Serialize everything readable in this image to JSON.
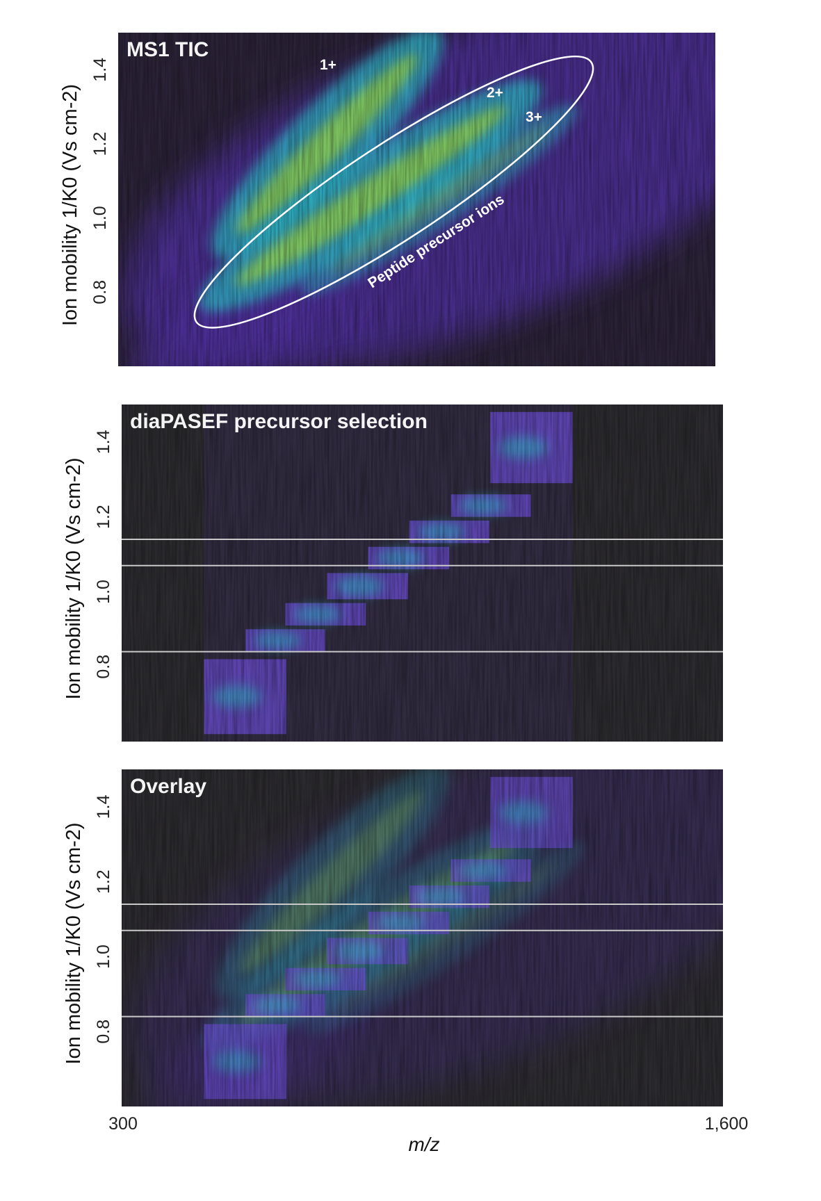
{
  "chart_data": [
    {
      "type": "heatmap",
      "title": "MS1 TIC",
      "ylabel": "Ion mobility 1/K0 (Vs cm-2)",
      "ylabel_parts": {
        "main": "Ion mobility 1/K",
        "sub": "0",
        "unit": "(Vs cm",
        "sup": "-2",
        "close": ")"
      },
      "yticks": [
        "0.8",
        "1.0",
        "1.2",
        "1.4"
      ],
      "ylim": [
        0.6,
        1.5
      ],
      "xlim": [
        300,
        1600
      ],
      "colormap": "viridis",
      "charge_bands": [
        {
          "label": "1+",
          "mz": [
            510,
            1000
          ],
          "im": [
            0.9,
            1.5
          ]
        },
        {
          "label": "2+",
          "mz": [
            480,
            1220
          ],
          "im": [
            0.76,
            1.36
          ]
        },
        {
          "label": "3+",
          "mz": [
            700,
            1300
          ],
          "im": [
            0.8,
            1.3
          ]
        }
      ],
      "annotations": [
        "1+",
        "2+",
        "3+",
        "Peptide precursor ions"
      ]
    },
    {
      "type": "heatmap",
      "title": "diaPASEF precursor selection",
      "ylabel": "Ion mobility 1/K0 (Vs cm-2)",
      "yticks": [
        "0.8",
        "1.0",
        "1.2",
        "1.4"
      ],
      "ylim": [
        0.6,
        1.5
      ],
      "xlim": [
        300,
        1600
      ],
      "windows": [
        {
          "mz": [
            478,
            656
          ],
          "im": [
            0.62,
            0.82
          ]
        },
        {
          "mz": [
            568,
            740
          ],
          "im": [
            0.84,
            0.9
          ]
        },
        {
          "mz": [
            654,
            828
          ],
          "im": [
            0.91,
            0.97
          ]
        },
        {
          "mz": [
            744,
            919
          ],
          "im": [
            0.98,
            1.05
          ]
        },
        {
          "mz": [
            833,
            1008
          ],
          "im": [
            1.06,
            1.12
          ]
        },
        {
          "mz": [
            922,
            1095
          ],
          "im": [
            1.13,
            1.19
          ]
        },
        {
          "mz": [
            1012,
            1185
          ],
          "im": [
            1.2,
            1.26
          ]
        },
        {
          "mz": [
            1097,
            1275
          ],
          "im": [
            1.29,
            1.48
          ]
        }
      ],
      "separator_lines_im": [
        0.84,
        1.07,
        1.14
      ]
    },
    {
      "type": "heatmap",
      "title": "Overlay",
      "ylabel": "Ion mobility 1/K0 (Vs cm-2)",
      "yticks": [
        "0.8",
        "1.0",
        "1.2",
        "1.4"
      ],
      "ylim": [
        0.6,
        1.5
      ],
      "xlim": [
        300,
        1600
      ],
      "separator_lines_im": [
        0.84,
        1.07,
        1.14
      ]
    }
  ],
  "x_axis": {
    "label": "m/z",
    "ticks": [
      "300",
      "1,600"
    ]
  },
  "colors": {
    "background_dark": "#2b2a2e",
    "glow_purple": "#4b2f95",
    "band_green": "#9bd43a",
    "band_teal": "#2bb3c0",
    "window_purple": "#6a4cd0",
    "ellipse": "#ffffff"
  }
}
